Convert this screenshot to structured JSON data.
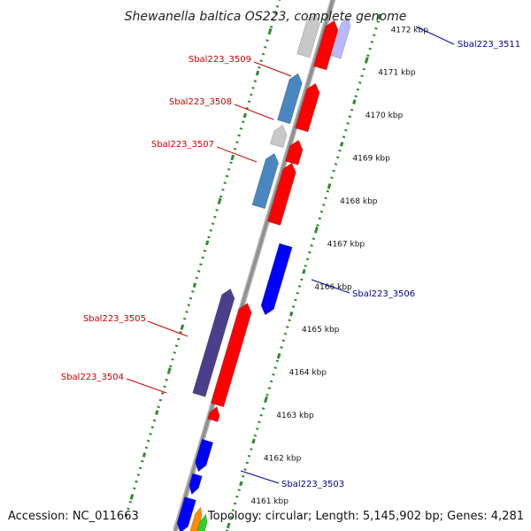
{
  "title": "Shewanella baltica OS223, complete genome",
  "footer": {
    "accession": "Accession: NC_011663",
    "summary": "Topology: circular; Length: 5,145,902 bp; Genes: 4,281"
  },
  "colors": {
    "background": "#ffffff",
    "backbone": "#8f8f8f",
    "tick_dots": "#2e8b2e",
    "forward_gene": "#ff0000",
    "reverse_gene_blue": "#0000ff",
    "steelblue_gene": "#4a86c0",
    "purple_gene": "#4b3f8c",
    "grey_gene": "#c8c8c8",
    "pale_gene": "#b8b8ff",
    "orange_gene": "#ff8c00",
    "green_gene": "#32cd32",
    "label_red": "#cc0000",
    "label_blue": "#00009a"
  },
  "ticks": [
    {
      "label": "4172 kbp",
      "kbp": 4172
    },
    {
      "label": "4171 kbp",
      "kbp": 4171
    },
    {
      "label": "4170 kbp",
      "kbp": 4170
    },
    {
      "label": "4169 kbp",
      "kbp": 4169
    },
    {
      "label": "4168 kbp",
      "kbp": 4168
    },
    {
      "label": "4167 kbp",
      "kbp": 4167
    },
    {
      "label": "4166 kbp",
      "kbp": 4166
    },
    {
      "label": "4165 kbp",
      "kbp": 4165
    },
    {
      "label": "4164 kbp",
      "kbp": 4164
    },
    {
      "label": "4163 kbp",
      "kbp": 4163
    },
    {
      "label": "4162 kbp",
      "kbp": 4162
    },
    {
      "label": "4161 kbp",
      "kbp": 4161
    }
  ],
  "gene_labels": [
    {
      "text": "Sbal223_3511",
      "side": "right",
      "color": "#00009a"
    },
    {
      "text": "Sbal223_3509",
      "side": "left",
      "color": "#cc0000"
    },
    {
      "text": "Sbal223_3508",
      "side": "left",
      "color": "#cc0000"
    },
    {
      "text": "Sbal223_3507",
      "side": "left",
      "color": "#cc0000"
    },
    {
      "text": "Sbal223_3506",
      "side": "right",
      "color": "#00009a"
    },
    {
      "text": "Sbal223_3505",
      "side": "left",
      "color": "#cc0000"
    },
    {
      "text": "Sbal223_3504",
      "side": "left",
      "color": "#cc0000"
    },
    {
      "text": "Sbal223_3503",
      "side": "right",
      "color": "#00009a"
    }
  ]
}
